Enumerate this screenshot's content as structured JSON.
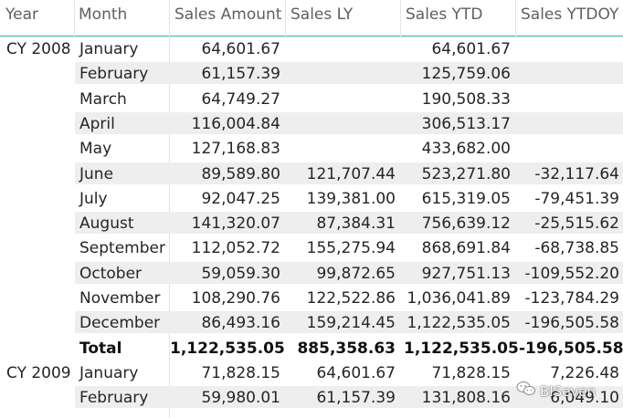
{
  "columns": {
    "year": "Year",
    "month": "Month",
    "sales_amount": "Sales Amount",
    "sales_ly": "Sales LY",
    "sales_ytd": "Sales YTD",
    "sales_ytdoy": "Sales YTDOY"
  },
  "rows": [
    {
      "year": "CY 2008",
      "month": "January",
      "sales_amount": "64,601.67",
      "sales_ly": "",
      "sales_ytd": "64,601.67",
      "sales_ytdoy": "",
      "shaded": false,
      "total": false
    },
    {
      "year": "",
      "month": "February",
      "sales_amount": "61,157.39",
      "sales_ly": "",
      "sales_ytd": "125,759.06",
      "sales_ytdoy": "",
      "shaded": true,
      "total": false
    },
    {
      "year": "",
      "month": "March",
      "sales_amount": "64,749.27",
      "sales_ly": "",
      "sales_ytd": "190,508.33",
      "sales_ytdoy": "",
      "shaded": false,
      "total": false
    },
    {
      "year": "",
      "month": "April",
      "sales_amount": "116,004.84",
      "sales_ly": "",
      "sales_ytd": "306,513.17",
      "sales_ytdoy": "",
      "shaded": true,
      "total": false
    },
    {
      "year": "",
      "month": "May",
      "sales_amount": "127,168.83",
      "sales_ly": "",
      "sales_ytd": "433,682.00",
      "sales_ytdoy": "",
      "shaded": false,
      "total": false
    },
    {
      "year": "",
      "month": "June",
      "sales_amount": "89,589.80",
      "sales_ly": "121,707.44",
      "sales_ytd": "523,271.80",
      "sales_ytdoy": "-32,117.64",
      "shaded": true,
      "total": false
    },
    {
      "year": "",
      "month": "July",
      "sales_amount": "92,047.25",
      "sales_ly": "139,381.00",
      "sales_ytd": "615,319.05",
      "sales_ytdoy": "-79,451.39",
      "shaded": false,
      "total": false
    },
    {
      "year": "",
      "month": "August",
      "sales_amount": "141,320.07",
      "sales_ly": "87,384.31",
      "sales_ytd": "756,639.12",
      "sales_ytdoy": "-25,515.62",
      "shaded": true,
      "total": false
    },
    {
      "year": "",
      "month": "September",
      "sales_amount": "112,052.72",
      "sales_ly": "155,275.94",
      "sales_ytd": "868,691.84",
      "sales_ytdoy": "-68,738.85",
      "shaded": false,
      "total": false
    },
    {
      "year": "",
      "month": "October",
      "sales_amount": "59,059.30",
      "sales_ly": "99,872.65",
      "sales_ytd": "927,751.13",
      "sales_ytdoy": "-109,552.20",
      "shaded": true,
      "total": false
    },
    {
      "year": "",
      "month": "November",
      "sales_amount": "108,290.76",
      "sales_ly": "122,522.86",
      "sales_ytd": "1,036,041.89",
      "sales_ytdoy": "-123,784.29",
      "shaded": false,
      "total": false
    },
    {
      "year": "",
      "month": "December",
      "sales_amount": "86,493.16",
      "sales_ly": "159,214.45",
      "sales_ytd": "1,122,535.05",
      "sales_ytdoy": "-196,505.58",
      "shaded": true,
      "total": false
    },
    {
      "year": "",
      "month": "Total",
      "sales_amount": "1,122,535.05",
      "sales_ly": "885,358.63",
      "sales_ytd": "1,122,535.05",
      "sales_ytdoy": "-196,505.58",
      "shaded": false,
      "total": true
    },
    {
      "year": "CY 2009",
      "month": "January",
      "sales_amount": "71,828.15",
      "sales_ly": "64,601.67",
      "sales_ytd": "71,828.15",
      "sales_ytdoy": "7,226.48",
      "shaded": false,
      "total": false
    },
    {
      "year": "",
      "month": "February",
      "sales_amount": "59,980.01",
      "sales_ly": "61,157.39",
      "sales_ytd": "131,808.16",
      "sales_ytdoy": "6,049.10",
      "shaded": true,
      "total": false
    }
  ],
  "watermark": {
    "text": "BISeven",
    "icon": "wechat-icon"
  },
  "colors": {
    "header_rule": "#2fb5a5",
    "band": "#eeeeee",
    "header_text": "#5f5f5f"
  }
}
